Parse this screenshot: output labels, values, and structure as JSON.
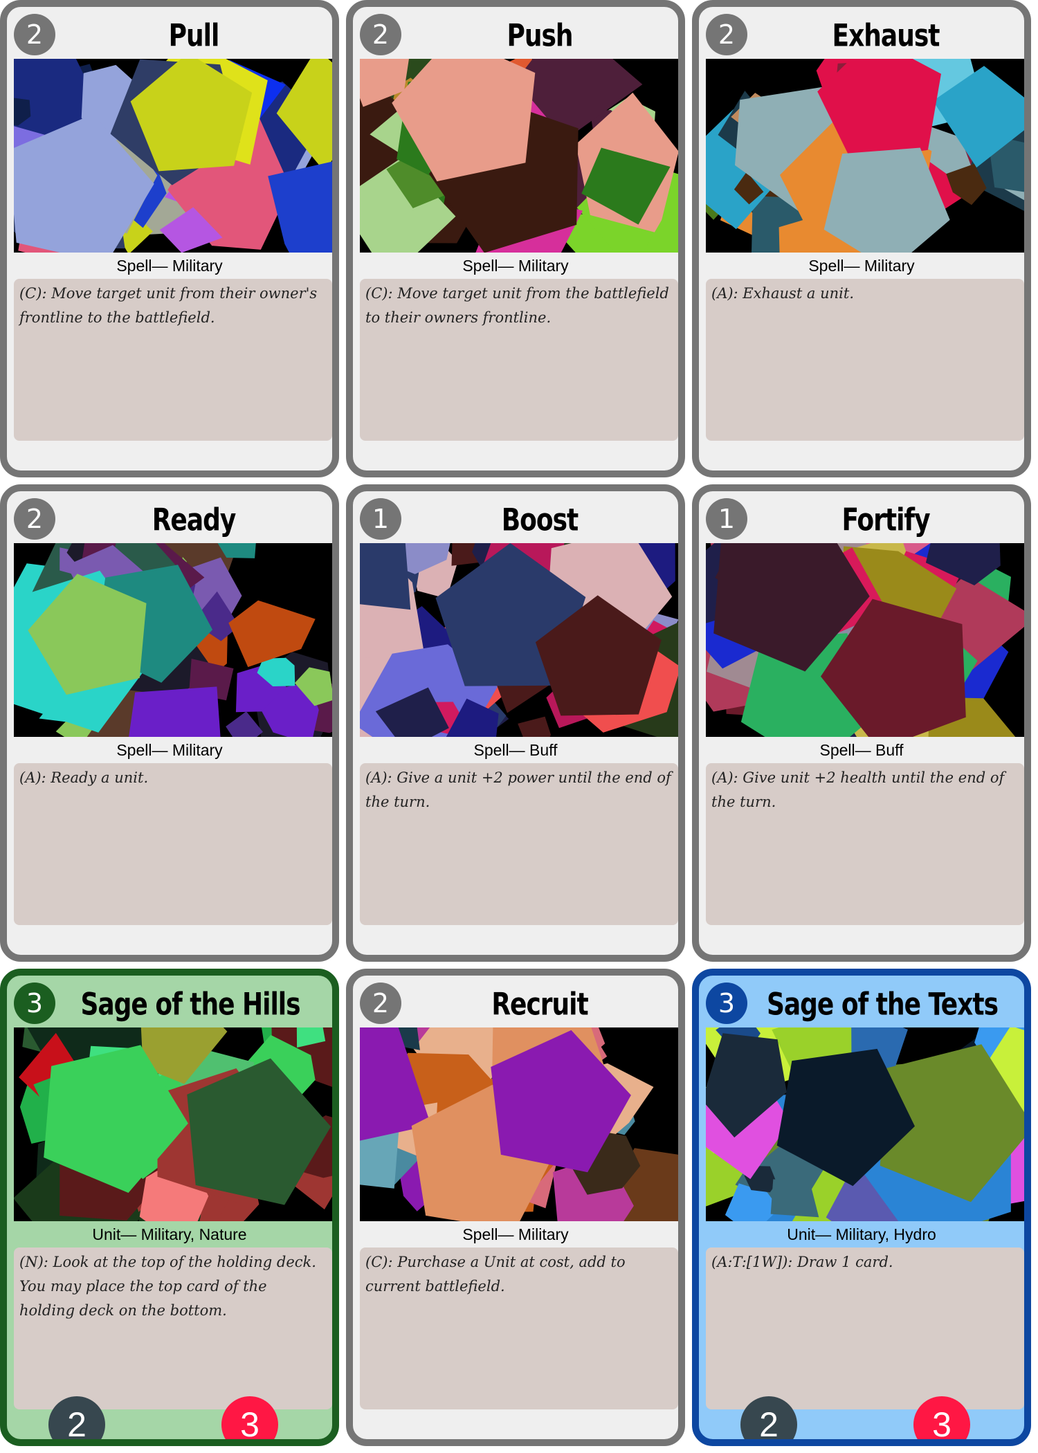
{
  "cards": [
    {
      "title": "Pull",
      "cost": "2",
      "type": "Spell— Military",
      "text": "(C): Move target unit from their owner's frontline to the battlefield.",
      "theme": "gray",
      "palette": [
        "#e2567a",
        "#2f3d66",
        "#7c6de0",
        "#dfe21a",
        "#0f1f4a",
        "#c8d21a",
        "#b556e2",
        "#1d3fcc",
        "#a3a896",
        "#94a3db",
        "#0c2ff0",
        "#1a2a80"
      ]
    },
    {
      "title": "Push",
      "cost": "2",
      "type": "Spell— Military",
      "text": "(C): Move target unit from the battlefield to their owners frontline.",
      "theme": "gray",
      "palette": [
        "#b98a2a",
        "#2b7a1c",
        "#7bd42a",
        "#4f8c2a",
        "#e05930",
        "#3a1a10",
        "#d62f9b",
        "#4e1f3a",
        "#a8d48c",
        "#e89c8a",
        "#2a4a1c",
        "#c24be3"
      ]
    },
    {
      "title": "Exhaust",
      "cost": "2",
      "type": "Spell— Military",
      "text": "(A): Exhaust a unit.",
      "theme": "gray",
      "palette": [
        "#4a7a1c",
        "#e88a30",
        "#1c3a4a",
        "#8a1e3a",
        "#2aa3c8",
        "#e0104a",
        "#64c8e0",
        "#4a2a10",
        "#c08b5e",
        "#8fafb5",
        "#2a5a6a",
        "#6ad0f0"
      ]
    },
    {
      "title": "Ready",
      "cost": "2",
      "type": "Spell— Military",
      "text": "(A): Ready a unit.",
      "theme": "gray",
      "palette": [
        "#5a3a2a",
        "#2ad4c8",
        "#7a5ab0",
        "#1c1a2a",
        "#5a1a4a",
        "#1e8a80",
        "#6a1fc8",
        "#c04a10",
        "#4a2a8a",
        "#8ac85a",
        "#c4fdf5",
        "#2a5a4a"
      ]
    },
    {
      "title": "Boost",
      "cost": "1",
      "type": "Spell— Buff",
      "text": "(A): Give a unit +2 power until the end of the turn.",
      "theme": "gray",
      "palette": [
        "#8b8cc8",
        "#dbb1b4",
        "#6a6ad8",
        "#d11a5f",
        "#1f1f4a",
        "#2a3a6a",
        "#f04e4e",
        "#1d1b80",
        "#b8185a",
        "#4a1a1a",
        "#d36a40",
        "#273a1a"
      ]
    },
    {
      "title": "Fortify",
      "cost": "1",
      "type": "Spell— Buff",
      "text": "(A): Give unit +2 health until the end of the turn.",
      "theme": "gray",
      "palette": [
        "#b03a5a",
        "#2ab060",
        "#1f1f4a",
        "#a08a92",
        "#8a8ca2",
        "#6a1a2a",
        "#c8b84a",
        "#1a2ad0",
        "#d81a5a",
        "#3a1a2a",
        "#d85a8a",
        "#9a8a1a"
      ]
    },
    {
      "title": "Sage of the Hills",
      "cost": "3",
      "type": "Unit— Military, Nature",
      "text": "(N): Look at the top of the holding deck. You may place the top card of the holding deck on the bottom.",
      "theme": "green",
      "power": "2",
      "health": "3",
      "palette": [
        "#c8101a",
        "#9e3632",
        "#3fe080",
        "#1a3a1a",
        "#9aa030",
        "#2a5a30",
        "#21b04a",
        "#5a1a1a",
        "#f57a7a",
        "#3ad05a",
        "#0f2a1a",
        "#50c070"
      ]
    },
    {
      "title": "Recruit",
      "cost": "2",
      "type": "Spell— Military",
      "text": "(C): Purchase a Unit at cost, add to current battlefield.",
      "theme": "gray",
      "palette": [
        "#d86a7a",
        "#c8601a",
        "#4a8aa0",
        "#b83a9a",
        "#3a2a1a",
        "#e09060",
        "#1a3a4a",
        "#e8b08c",
        "#67a6b7",
        "#8a1ab0",
        "#6a3a1a",
        "#f08a30"
      ]
    },
    {
      "title": "Sage of the Texts",
      "cost": "3",
      "type": "Unit— Military, Hydro",
      "text": "(A:T:[1W]): Draw 1 card.",
      "theme": "blue",
      "power": "2",
      "health": "3",
      "palette": [
        "#9ad12a",
        "#2a84d5",
        "#3a9af0",
        "#e050e0",
        "#1a2a3a",
        "#6a8a2a",
        "#c8f03a",
        "#3a6a7a",
        "#5a5ab0",
        "#0a1a2a",
        "#2a6ab0",
        "#1a4a8a"
      ]
    }
  ]
}
